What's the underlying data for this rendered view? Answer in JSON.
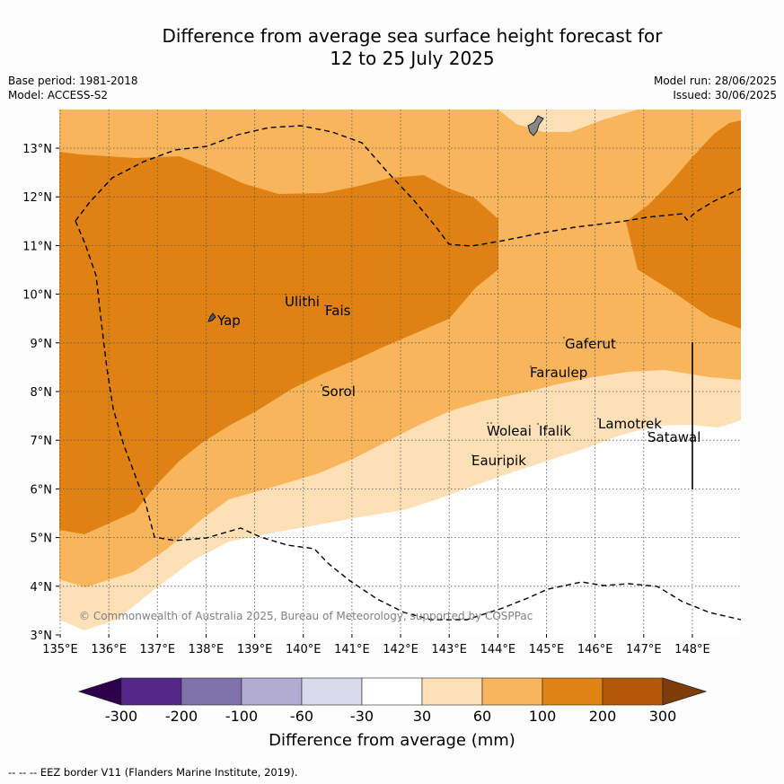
{
  "title": {
    "line1": "Difference from average sea surface height forecast for",
    "line2": "12 to 25 July 2025"
  },
  "meta": {
    "base_period": "Base period: 1981-2018",
    "model": "Model: ACCESS-S2",
    "model_run": "Model run: 28/06/2025",
    "issued": "Issued: 30/06/2025"
  },
  "map": {
    "lon_labels": [
      "135°E",
      "136°E",
      "137°E",
      "138°E",
      "139°E",
      "140°E",
      "141°E",
      "142°E",
      "143°E",
      "144°E",
      "145°E",
      "146°E",
      "147°E",
      "148°E"
    ],
    "lat_labels": [
      "13°N",
      "12°N",
      "11°N",
      "10°N",
      "9°N",
      "8°N",
      "7°N",
      "6°N",
      "5°N",
      "4°N",
      "3°N"
    ],
    "places": [
      "Yap",
      "Ulithi",
      "Fais",
      "Sorol",
      "Gaferut",
      "Faraulep",
      "Woleai",
      "Ifalik",
      "Lamotrek",
      "Satawal",
      "Eauripik"
    ],
    "copyright": "© Commonwealth of Australia 2025, Bureau of Meteorology, supported by COSPPac",
    "colors": {
      "band_30_60": "#fde0b6",
      "band_60_100": "#f8b55c",
      "band_100_200": "#e08213",
      "ocean_neutral": "#ffffff",
      "land": "#888888"
    }
  },
  "colorbar": {
    "ticks": [
      "-300",
      "-200",
      "-100",
      "-60",
      "-30",
      "30",
      "60",
      "100",
      "200",
      "300"
    ],
    "colors": [
      "#2d004b",
      "#542788",
      "#8073ac",
      "#b2abd2",
      "#d8daeb",
      "#ffffff",
      "#fee0b6",
      "#f8b55c",
      "#e08214",
      "#b35806",
      "#7f3b08"
    ],
    "label": "Difference from average (mm)"
  },
  "footnote": "--  --  -- EEZ border V11 (Flanders Marine Institute, 2019)."
}
